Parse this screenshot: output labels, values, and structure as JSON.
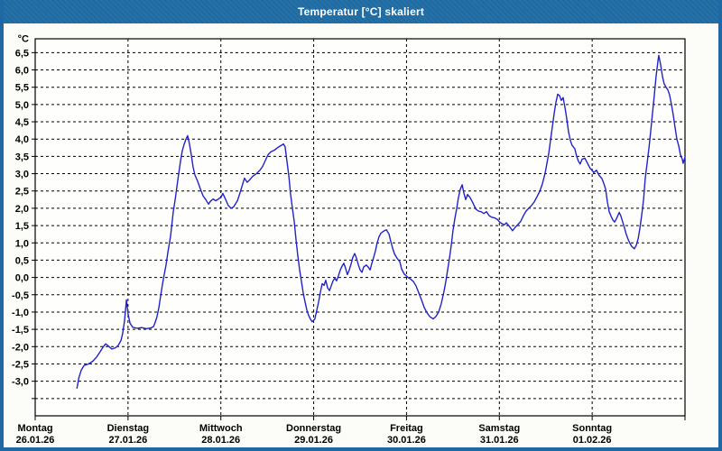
{
  "window": {
    "title": "Temperatur [°C] skaliert"
  },
  "colors": {
    "frame": "#2068a4",
    "titlebar": "#2470a8",
    "title_text": "#ffffff",
    "plot_bg": "#fefefc",
    "grid": "#000000",
    "axis": "#000000",
    "line": "#2222cc",
    "label_text": "#000000"
  },
  "chart_data": {
    "type": "line",
    "title": "Temperatur [°C] skaliert",
    "ylabel": "°C",
    "decimal_separator": ",",
    "ylim": [
      -4.0,
      6.9
    ],
    "grid": {
      "on": true,
      "y_step": 0.5,
      "y_line_max": 6.5,
      "y_line_min": -3.5,
      "x_lines": "day-boundaries",
      "style": "dashed"
    },
    "yticks": {
      "max": 6.5,
      "min": -3.0,
      "step": 0.5,
      "labels": [
        "6,5",
        "6,0",
        "5,5",
        "5,0",
        "4,5",
        "4,0",
        "3,5",
        "3,0",
        "2,5",
        "2,0",
        "1,5",
        "1,0",
        "0,5",
        "0,0",
        "-0,5",
        "-1,0",
        "-1,5",
        "-2,0",
        "-2,5",
        "-3,0"
      ]
    },
    "x_axis": {
      "unit": "hours",
      "range_hours": [
        0,
        168
      ],
      "hours_per_day": 24,
      "day_ticks": [
        {
          "name": "Montag",
          "date": "26.01.26"
        },
        {
          "name": "Dienstag",
          "date": "27.01.26"
        },
        {
          "name": "Mittwoch",
          "date": "28.01.26"
        },
        {
          "name": "Donnerstag",
          "date": "29.01.26"
        },
        {
          "name": "Freitag",
          "date": "30.01.26"
        },
        {
          "name": "Samstag",
          "date": "31.01.26"
        },
        {
          "name": "Sonntag",
          "date": "01.02.26"
        }
      ]
    },
    "legend": {
      "visible": false
    },
    "series": [
      {
        "name": "Temperatur",
        "color": "#2222cc",
        "points": [
          [
            10.8,
            -3.2
          ],
          [
            11.3,
            -2.9
          ],
          [
            11.9,
            -2.68
          ],
          [
            12.6,
            -2.55
          ],
          [
            13.8,
            -2.5
          ],
          [
            14.9,
            -2.42
          ],
          [
            15.9,
            -2.3
          ],
          [
            16.6,
            -2.18
          ],
          [
            17.5,
            -2.02
          ],
          [
            18.2,
            -1.92
          ],
          [
            19.1,
            -2.0
          ],
          [
            19.8,
            -2.07
          ],
          [
            20.8,
            -2.03
          ],
          [
            21.5,
            -1.96
          ],
          [
            22.2,
            -1.82
          ],
          [
            22.6,
            -1.62
          ],
          [
            23.1,
            -1.25
          ],
          [
            23.6,
            -0.65
          ],
          [
            24.0,
            -1.05
          ],
          [
            24.5,
            -1.32
          ],
          [
            25.2,
            -1.44
          ],
          [
            26.4,
            -1.47
          ],
          [
            27.5,
            -1.45
          ],
          [
            28.7,
            -1.48
          ],
          [
            29.9,
            -1.46
          ],
          [
            30.6,
            -1.42
          ],
          [
            31.0,
            -1.3
          ],
          [
            31.5,
            -1.13
          ],
          [
            32.0,
            -0.86
          ],
          [
            32.4,
            -0.55
          ],
          [
            32.9,
            -0.2
          ],
          [
            33.4,
            0.1
          ],
          [
            33.8,
            0.35
          ],
          [
            34.3,
            0.72
          ],
          [
            35.0,
            1.2
          ],
          [
            35.7,
            1.9
          ],
          [
            36.2,
            2.25
          ],
          [
            36.6,
            2.6
          ],
          [
            37.1,
            3.0
          ],
          [
            37.6,
            3.38
          ],
          [
            38.0,
            3.65
          ],
          [
            38.5,
            3.85
          ],
          [
            39.0,
            4.0
          ],
          [
            39.4,
            4.1
          ],
          [
            39.9,
            3.85
          ],
          [
            40.4,
            3.52
          ],
          [
            40.8,
            3.2
          ],
          [
            41.3,
            2.96
          ],
          [
            42.0,
            2.78
          ],
          [
            42.7,
            2.56
          ],
          [
            43.4,
            2.36
          ],
          [
            44.1,
            2.25
          ],
          [
            44.8,
            2.12
          ],
          [
            45.3,
            2.2
          ],
          [
            46.0,
            2.27
          ],
          [
            46.7,
            2.22
          ],
          [
            47.4,
            2.27
          ],
          [
            48.1,
            2.33
          ],
          [
            48.5,
            2.43
          ],
          [
            49.2,
            2.26
          ],
          [
            49.9,
            2.08
          ],
          [
            50.6,
            2.0
          ],
          [
            51.3,
            2.04
          ],
          [
            52.3,
            2.22
          ],
          [
            53.0,
            2.46
          ],
          [
            53.7,
            2.72
          ],
          [
            54.1,
            2.87
          ],
          [
            54.8,
            2.75
          ],
          [
            55.5,
            2.83
          ],
          [
            56.2,
            2.92
          ],
          [
            57.2,
            3.0
          ],
          [
            58.1,
            3.1
          ],
          [
            58.8,
            3.21
          ],
          [
            59.5,
            3.38
          ],
          [
            60.2,
            3.55
          ],
          [
            60.9,
            3.63
          ],
          [
            61.8,
            3.68
          ],
          [
            62.8,
            3.76
          ],
          [
            63.5,
            3.81
          ],
          [
            64.2,
            3.86
          ],
          [
            64.6,
            3.78
          ],
          [
            65.1,
            3.35
          ],
          [
            65.6,
            2.92
          ],
          [
            66.0,
            2.42
          ],
          [
            66.5,
            2.0
          ],
          [
            67.0,
            1.6
          ],
          [
            67.4,
            1.12
          ],
          [
            67.9,
            0.62
          ],
          [
            68.4,
            0.2
          ],
          [
            68.8,
            -0.1
          ],
          [
            69.3,
            -0.45
          ],
          [
            69.8,
            -0.72
          ],
          [
            70.2,
            -0.93
          ],
          [
            70.7,
            -1.1
          ],
          [
            71.2,
            -1.21
          ],
          [
            71.6,
            -1.28
          ],
          [
            72.3,
            -1.2
          ],
          [
            72.8,
            -0.95
          ],
          [
            73.3,
            -0.7
          ],
          [
            73.7,
            -0.44
          ],
          [
            74.2,
            -0.18
          ],
          [
            74.7,
            -0.23
          ],
          [
            75.1,
            -0.08
          ],
          [
            75.6,
            -0.3
          ],
          [
            76.1,
            -0.38
          ],
          [
            76.5,
            -0.25
          ],
          [
            77.0,
            -0.1
          ],
          [
            77.5,
            -0.02
          ],
          [
            77.9,
            -0.1
          ],
          [
            78.4,
            0.05
          ],
          [
            78.9,
            0.22
          ],
          [
            79.3,
            0.32
          ],
          [
            79.8,
            0.41
          ],
          [
            80.3,
            0.25
          ],
          [
            80.7,
            0.08
          ],
          [
            81.2,
            0.22
          ],
          [
            81.7,
            0.4
          ],
          [
            82.1,
            0.58
          ],
          [
            82.6,
            0.69
          ],
          [
            83.1,
            0.55
          ],
          [
            83.5,
            0.38
          ],
          [
            84.0,
            0.22
          ],
          [
            84.5,
            0.15
          ],
          [
            84.9,
            0.3
          ],
          [
            85.6,
            0.36
          ],
          [
            86.1,
            0.3
          ],
          [
            86.6,
            0.22
          ],
          [
            87.0,
            0.4
          ],
          [
            87.5,
            0.58
          ],
          [
            88.0,
            0.78
          ],
          [
            88.4,
            1.0
          ],
          [
            88.9,
            1.18
          ],
          [
            89.4,
            1.28
          ],
          [
            90.1,
            1.34
          ],
          [
            90.8,
            1.38
          ],
          [
            91.5,
            1.25
          ],
          [
            91.9,
            1.05
          ],
          [
            92.4,
            0.85
          ],
          [
            92.9,
            0.68
          ],
          [
            93.6,
            0.55
          ],
          [
            94.3,
            0.45
          ],
          [
            94.7,
            0.25
          ],
          [
            95.4,
            0.1
          ],
          [
            96.4,
            0.0
          ],
          [
            97.1,
            -0.05
          ],
          [
            97.8,
            -0.12
          ],
          [
            98.5,
            -0.25
          ],
          [
            99.2,
            -0.45
          ],
          [
            99.9,
            -0.65
          ],
          [
            100.6,
            -0.87
          ],
          [
            101.3,
            -1.02
          ],
          [
            102.0,
            -1.13
          ],
          [
            102.9,
            -1.2
          ],
          [
            103.6,
            -1.13
          ],
          [
            104.3,
            -1.0
          ],
          [
            105.0,
            -0.75
          ],
          [
            105.7,
            -0.4
          ],
          [
            106.2,
            -0.1
          ],
          [
            106.6,
            0.2
          ],
          [
            107.1,
            0.55
          ],
          [
            107.6,
            0.95
          ],
          [
            108.0,
            1.35
          ],
          [
            108.5,
            1.7
          ],
          [
            109.0,
            2.0
          ],
          [
            109.4,
            2.3
          ],
          [
            109.9,
            2.55
          ],
          [
            110.4,
            2.68
          ],
          [
            110.8,
            2.45
          ],
          [
            111.3,
            2.25
          ],
          [
            111.8,
            2.4
          ],
          [
            112.5,
            2.3
          ],
          [
            113.2,
            2.15
          ],
          [
            113.9,
            1.98
          ],
          [
            114.6,
            1.92
          ],
          [
            115.3,
            1.9
          ],
          [
            116.0,
            1.85
          ],
          [
            116.7,
            1.9
          ],
          [
            117.4,
            1.78
          ],
          [
            118.1,
            1.74
          ],
          [
            118.8,
            1.72
          ],
          [
            119.5,
            1.68
          ],
          [
            119.9,
            1.62
          ],
          [
            120.6,
            1.56
          ],
          [
            121.3,
            1.52
          ],
          [
            121.8,
            1.58
          ],
          [
            122.3,
            1.52
          ],
          [
            123.0,
            1.42
          ],
          [
            123.4,
            1.35
          ],
          [
            124.1,
            1.45
          ],
          [
            124.8,
            1.53
          ],
          [
            125.5,
            1.62
          ],
          [
            126.2,
            1.78
          ],
          [
            126.9,
            1.92
          ],
          [
            127.6,
            2.0
          ],
          [
            128.3,
            2.08
          ],
          [
            129.0,
            2.18
          ],
          [
            129.7,
            2.33
          ],
          [
            130.4,
            2.48
          ],
          [
            131.1,
            2.7
          ],
          [
            131.8,
            3.0
          ],
          [
            132.3,
            3.3
          ],
          [
            132.8,
            3.6
          ],
          [
            133.2,
            3.95
          ],
          [
            133.7,
            4.35
          ],
          [
            134.2,
            4.75
          ],
          [
            134.6,
            5.05
          ],
          [
            135.1,
            5.3
          ],
          [
            135.6,
            5.25
          ],
          [
            136.0,
            5.12
          ],
          [
            136.5,
            5.2
          ],
          [
            137.0,
            4.9
          ],
          [
            137.4,
            4.6
          ],
          [
            137.9,
            4.2
          ],
          [
            138.4,
            3.95
          ],
          [
            138.8,
            3.82
          ],
          [
            139.5,
            3.72
          ],
          [
            140.0,
            3.5
          ],
          [
            140.5,
            3.35
          ],
          [
            140.9,
            3.28
          ],
          [
            141.4,
            3.42
          ],
          [
            142.1,
            3.45
          ],
          [
            142.8,
            3.3
          ],
          [
            143.5,
            3.15
          ],
          [
            144.0,
            3.1
          ],
          [
            144.4,
            3.03
          ],
          [
            145.1,
            3.1
          ],
          [
            145.8,
            2.95
          ],
          [
            146.5,
            2.86
          ],
          [
            147.0,
            2.72
          ],
          [
            147.5,
            2.55
          ],
          [
            147.9,
            2.2
          ],
          [
            148.4,
            1.9
          ],
          [
            148.9,
            1.77
          ],
          [
            149.3,
            1.67
          ],
          [
            149.8,
            1.6
          ],
          [
            150.3,
            1.7
          ],
          [
            151.0,
            1.88
          ],
          [
            151.4,
            1.78
          ],
          [
            151.9,
            1.6
          ],
          [
            152.4,
            1.42
          ],
          [
            152.8,
            1.25
          ],
          [
            153.3,
            1.1
          ],
          [
            153.8,
            0.98
          ],
          [
            154.2,
            0.9
          ],
          [
            154.9,
            0.83
          ],
          [
            155.4,
            0.93
          ],
          [
            155.9,
            1.12
          ],
          [
            156.3,
            1.4
          ],
          [
            156.8,
            1.8
          ],
          [
            157.3,
            2.25
          ],
          [
            157.7,
            2.85
          ],
          [
            158.2,
            3.3
          ],
          [
            158.7,
            3.75
          ],
          [
            159.1,
            4.2
          ],
          [
            159.6,
            4.75
          ],
          [
            160.1,
            5.3
          ],
          [
            160.5,
            5.8
          ],
          [
            161.0,
            6.25
          ],
          [
            161.2,
            6.42
          ],
          [
            161.7,
            6.15
          ],
          [
            162.2,
            5.8
          ],
          [
            162.6,
            5.6
          ],
          [
            163.1,
            5.5
          ],
          [
            163.6,
            5.42
          ],
          [
            164.0,
            5.28
          ],
          [
            164.5,
            5.0
          ],
          [
            165.0,
            4.68
          ],
          [
            165.4,
            4.35
          ],
          [
            165.9,
            4.0
          ],
          [
            166.4,
            3.8
          ],
          [
            166.8,
            3.55
          ],
          [
            167.3,
            3.42
          ],
          [
            167.5,
            3.3
          ],
          [
            168.0,
            3.48
          ]
        ]
      }
    ]
  }
}
